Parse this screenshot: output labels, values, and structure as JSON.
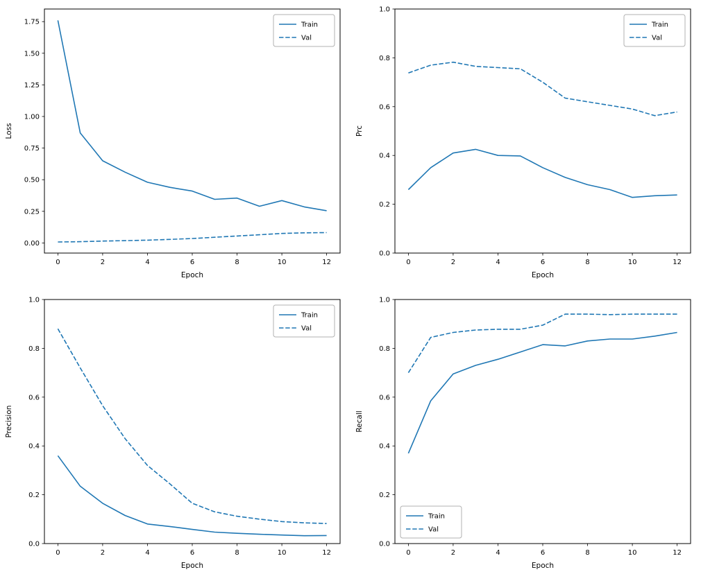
{
  "style": {
    "line_color": "#1f77b4",
    "frame_color": "#000000",
    "background": "#ffffff",
    "legend_border": "#b0b0b0"
  },
  "chart_data": [
    {
      "type": "line",
      "title": "",
      "xlabel": "Epoch",
      "ylabel": "Loss",
      "x": [
        0,
        1,
        2,
        3,
        4,
        5,
        6,
        7,
        8,
        9,
        10,
        11,
        12
      ],
      "xlim": [
        -0.6,
        12.6
      ],
      "ylim": [
        -0.08,
        1.85
      ],
      "xticks": [
        0,
        2,
        4,
        6,
        8,
        10,
        12
      ],
      "xtick_labels": [
        "0",
        "2",
        "4",
        "6",
        "8",
        "10",
        "12"
      ],
      "yticks": [
        0.0,
        0.25,
        0.5,
        0.75,
        1.0,
        1.25,
        1.5,
        1.75
      ],
      "ytick_labels": [
        "0.00",
        "0.25",
        "0.50",
        "0.75",
        "1.00",
        "1.25",
        "1.50",
        "1.75"
      ],
      "grid": false,
      "series": [
        {
          "name": "Train",
          "style": "solid",
          "values": [
            1.76,
            0.87,
            0.65,
            0.56,
            0.48,
            0.44,
            0.41,
            0.345,
            0.355,
            0.29,
            0.335,
            0.285,
            0.255
          ]
        },
        {
          "name": "Val",
          "style": "dashed",
          "values": [
            0.008,
            0.01,
            0.015,
            0.018,
            0.022,
            0.028,
            0.035,
            0.045,
            0.055,
            0.065,
            0.075,
            0.08,
            0.082
          ]
        }
      ],
      "legend": {
        "position": "upper-right",
        "items": [
          "Train",
          "Val"
        ]
      }
    },
    {
      "type": "line",
      "title": "",
      "xlabel": "Epoch",
      "ylabel": "Prc",
      "x": [
        0,
        1,
        2,
        3,
        4,
        5,
        6,
        7,
        8,
        9,
        10,
        11,
        12
      ],
      "xlim": [
        -0.6,
        12.6
      ],
      "ylim": [
        0.0,
        1.0
      ],
      "xticks": [
        0,
        2,
        4,
        6,
        8,
        10,
        12
      ],
      "xtick_labels": [
        "0",
        "2",
        "4",
        "6",
        "8",
        "10",
        "12"
      ],
      "yticks": [
        0.0,
        0.2,
        0.4,
        0.6,
        0.8,
        1.0
      ],
      "ytick_labels": [
        "0.0",
        "0.2",
        "0.4",
        "0.6",
        "0.8",
        "1.0"
      ],
      "grid": false,
      "series": [
        {
          "name": "Train",
          "style": "solid",
          "values": [
            0.26,
            0.35,
            0.41,
            0.425,
            0.4,
            0.398,
            0.35,
            0.31,
            0.28,
            0.26,
            0.228,
            0.235,
            0.238
          ]
        },
        {
          "name": "Val",
          "style": "dashed",
          "values": [
            0.738,
            0.77,
            0.782,
            0.765,
            0.76,
            0.755,
            0.7,
            0.635,
            0.62,
            0.605,
            0.59,
            0.563,
            0.578
          ]
        }
      ],
      "legend": {
        "position": "upper-right",
        "items": [
          "Train",
          "Val"
        ]
      }
    },
    {
      "type": "line",
      "title": "",
      "xlabel": "Epoch",
      "ylabel": "Precision",
      "x": [
        0,
        1,
        2,
        3,
        4,
        5,
        6,
        7,
        8,
        9,
        10,
        11,
        12
      ],
      "xlim": [
        -0.6,
        12.6
      ],
      "ylim": [
        0.0,
        1.0
      ],
      "xticks": [
        0,
        2,
        4,
        6,
        8,
        10,
        12
      ],
      "xtick_labels": [
        "0",
        "2",
        "4",
        "6",
        "8",
        "10",
        "12"
      ],
      "yticks": [
        0.0,
        0.2,
        0.4,
        0.6,
        0.8,
        1.0
      ],
      "ytick_labels": [
        "0.0",
        "0.2",
        "0.4",
        "0.6",
        "0.8",
        "1.0"
      ],
      "grid": false,
      "series": [
        {
          "name": "Train",
          "style": "solid",
          "values": [
            0.36,
            0.235,
            0.165,
            0.115,
            0.08,
            0.07,
            0.058,
            0.047,
            0.042,
            0.038,
            0.035,
            0.032,
            0.033
          ]
        },
        {
          "name": "Val",
          "style": "dashed",
          "values": [
            0.88,
            0.72,
            0.565,
            0.43,
            0.32,
            0.245,
            0.165,
            0.13,
            0.112,
            0.1,
            0.09,
            0.085,
            0.082
          ]
        }
      ],
      "legend": {
        "position": "upper-right",
        "items": [
          "Train",
          "Val"
        ]
      }
    },
    {
      "type": "line",
      "title": "",
      "xlabel": "Epoch",
      "ylabel": "Recall",
      "x": [
        0,
        1,
        2,
        3,
        4,
        5,
        6,
        7,
        8,
        9,
        10,
        11,
        12
      ],
      "xlim": [
        -0.6,
        12.6
      ],
      "ylim": [
        0.0,
        1.0
      ],
      "xticks": [
        0,
        2,
        4,
        6,
        8,
        10,
        12
      ],
      "xtick_labels": [
        "0",
        "2",
        "4",
        "6",
        "8",
        "10",
        "12"
      ],
      "yticks": [
        0.0,
        0.2,
        0.4,
        0.6,
        0.8,
        1.0
      ],
      "ytick_labels": [
        "0.0",
        "0.2",
        "0.4",
        "0.6",
        "0.8",
        "1.0"
      ],
      "grid": false,
      "series": [
        {
          "name": "Train",
          "style": "solid",
          "values": [
            0.37,
            0.585,
            0.695,
            0.73,
            0.755,
            0.785,
            0.815,
            0.81,
            0.83,
            0.838,
            0.838,
            0.85,
            0.865
          ]
        },
        {
          "name": "Val",
          "style": "dashed",
          "values": [
            0.7,
            0.845,
            0.865,
            0.875,
            0.878,
            0.878,
            0.895,
            0.94,
            0.94,
            0.938,
            0.94,
            0.94,
            0.94
          ]
        }
      ],
      "legend": {
        "position": "lower-left",
        "items": [
          "Train",
          "Val"
        ]
      }
    }
  ]
}
